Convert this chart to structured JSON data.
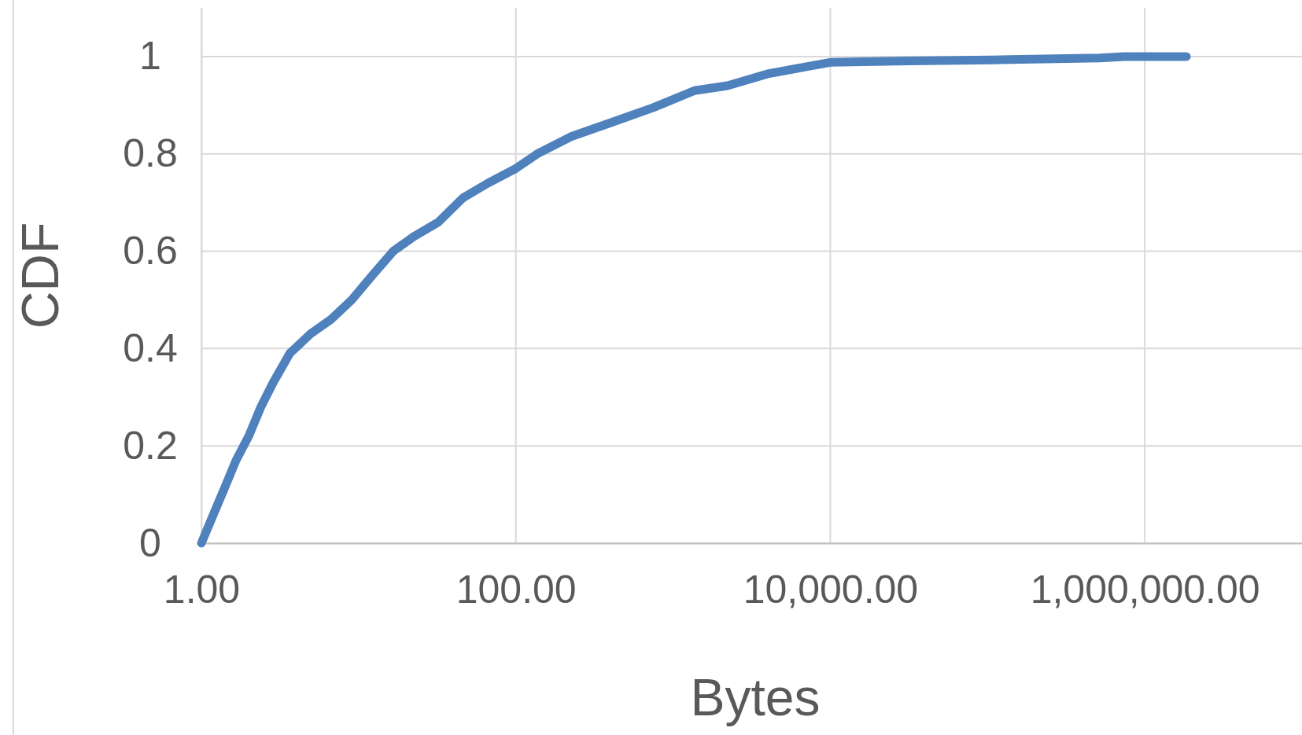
{
  "chart_data": {
    "type": "line",
    "xlabel": "Bytes",
    "ylabel": "CDF",
    "log": "x",
    "grid": true,
    "marker": "none",
    "line_style": "solid",
    "xlim": [
      1,
      10000000
    ],
    "xticks": [
      {
        "value": 1,
        "label": "1.00"
      },
      {
        "value": 100,
        "label": "100.00"
      },
      {
        "value": 10000,
        "label": "10,000.00"
      },
      {
        "value": 1000000,
        "label": "1,000,000.00"
      }
    ],
    "ylim": [
      0,
      1.1
    ],
    "yticks": [
      0,
      0.2,
      0.4,
      0.6,
      0.8,
      1
    ],
    "series": [
      {
        "color": "#4f81bd",
        "x": [
          1,
          1.16,
          1.39,
          1.66,
          2.0,
          2.39,
          2.86,
          3.65,
          4.94,
          6.68,
          9.04,
          12.2,
          16.6,
          22.4,
          32.2,
          46.3,
          66.6,
          100,
          137,
          223,
          409,
          748,
          1370,
          2220,
          4070,
          10000,
          31800,
          107000,
          516000,
          740000,
          1840000
        ],
        "values": [
          0,
          0.05,
          0.11,
          0.17,
          0.22,
          0.28,
          0.33,
          0.39,
          0.43,
          0.46,
          0.5,
          0.55,
          0.6,
          0.63,
          0.66,
          0.71,
          0.74,
          0.77,
          0.8,
          0.835,
          0.865,
          0.895,
          0.93,
          0.94,
          0.965,
          0.988,
          0.991,
          0.993,
          0.997,
          1,
          1
        ]
      }
    ]
  }
}
